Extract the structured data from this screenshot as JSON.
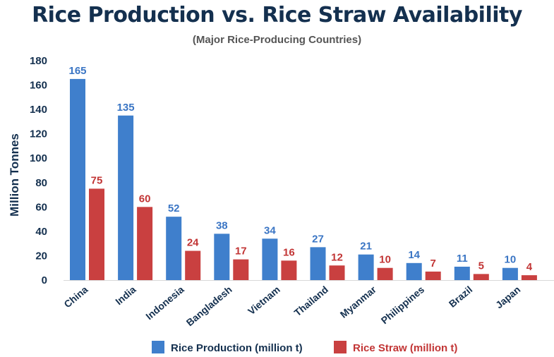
{
  "chart_data": {
    "type": "bar",
    "title": "Rice Production vs. Rice Straw Availability",
    "subtitle": "(Major Rice-Producing Countries)",
    "xlabel": "",
    "ylabel": "Million Tonnes",
    "ylim": [
      0,
      180
    ],
    "yticks": [
      0,
      20,
      40,
      60,
      80,
      100,
      120,
      140,
      160,
      180
    ],
    "grid": false,
    "legend_position": "bottom",
    "categories": [
      "China",
      "India",
      "Indonesia",
      "Bangladesh",
      "Vietnam",
      "Thailand",
      "Myanmar",
      "Philippines",
      "Brazil",
      "Japan"
    ],
    "series": [
      {
        "name": "Rice Production (million t)",
        "color": "#3f7fcc",
        "label_color": "#3a75c4",
        "values": [
          165,
          135,
          52,
          38,
          34,
          27,
          21,
          14,
          11,
          10
        ]
      },
      {
        "name": "Rice Straw (million t)",
        "color": "#c94040",
        "label_color": "#c23535",
        "values": [
          75,
          60,
          24,
          17,
          16,
          12,
          10,
          7,
          5,
          4
        ]
      }
    ]
  }
}
